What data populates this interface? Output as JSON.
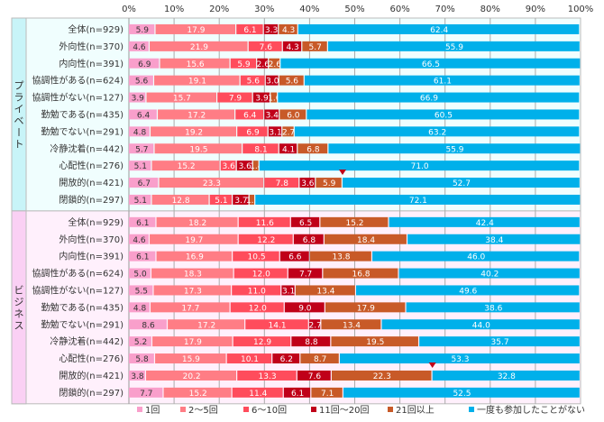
{
  "chart_data": {
    "type": "bar",
    "orientation": "horizontal",
    "stacked": "percent",
    "title": "",
    "xlabel": "",
    "ylabel": "",
    "xlim": [
      0,
      100
    ],
    "x_ticks": [
      "0%",
      "10%",
      "20%",
      "30%",
      "40%",
      "50%",
      "60%",
      "70%",
      "80%",
      "90%",
      "100%"
    ],
    "grid": true,
    "legend_position": "bottom",
    "series": [
      {
        "name": "1回",
        "color": "#F99FCB"
      },
      {
        "name": "2～5回",
        "color": "#FF7D85"
      },
      {
        "name": "6～10回",
        "color": "#FF4C5C"
      },
      {
        "name": "11回～20回",
        "color": "#C00019"
      },
      {
        "name": "21回以上",
        "color": "#C85A28"
      },
      {
        "name": "一度も参加したことがない",
        "color": "#00B0EA"
      }
    ],
    "groups": [
      {
        "name": "プライベート",
        "background": "#F0FEFE",
        "side_color": "#C8F4F8",
        "rows": [
          {
            "label": "全体(n=929)",
            "values": [
              5.9,
              17.9,
              6.1,
              3.3,
              4.3,
              62.4
            ]
          },
          {
            "label": "外向性(n=370)",
            "values": [
              4.6,
              21.9,
              7.6,
              4.3,
              5.7,
              55.9
            ]
          },
          {
            "label": "内向性(n=391)",
            "values": [
              6.9,
              15.6,
              5.9,
              2.6,
              2.6,
              66.5
            ]
          },
          {
            "label": "協調性がある(n=624)",
            "values": [
              5.6,
              19.1,
              5.6,
              3.0,
              5.6,
              61.1
            ]
          },
          {
            "label": "協調性がない(n=127)",
            "values": [
              3.9,
              15.7,
              7.9,
              3.9,
              1.6,
              66.9
            ]
          },
          {
            "label": "勤勉である(n=435)",
            "values": [
              6.4,
              17.2,
              6.4,
              3.4,
              6.0,
              60.5
            ]
          },
          {
            "label": "勤勉でない(n=291)",
            "values": [
              4.8,
              19.2,
              6.9,
              3.1,
              2.7,
              63.2
            ]
          },
          {
            "label": "冷静沈着(n=442)",
            "values": [
              5.7,
              19.5,
              8.1,
              4.1,
              6.8,
              55.9
            ]
          },
          {
            "label": "心配性(n=276)",
            "values": [
              5.1,
              15.2,
              3.6,
              3.6,
              1.4,
              71.0
            ]
          },
          {
            "label": "開放的(n=421)",
            "values": [
              6.7,
              23.3,
              7.8,
              3.6,
              5.9,
              52.7
            ],
            "marker": true
          },
          {
            "label": "閉鎖的(n=297)",
            "values": [
              5.1,
              12.8,
              5.1,
              3.7,
              1.3,
              72.1
            ]
          }
        ]
      },
      {
        "name": "ビジネス",
        "background": "#FFF0FC",
        "side_color": "#FAD0F4",
        "rows": [
          {
            "label": "全体(n=929)",
            "values": [
              6.1,
              18.2,
              11.6,
              6.5,
              15.2,
              42.4
            ]
          },
          {
            "label": "外向性(n=370)",
            "values": [
              4.6,
              19.7,
              12.2,
              6.8,
              18.4,
              38.4
            ]
          },
          {
            "label": "内向性(n=391)",
            "values": [
              6.1,
              16.9,
              10.5,
              6.6,
              13.8,
              46.0
            ]
          },
          {
            "label": "協調性がある(n=624)",
            "values": [
              5.0,
              18.3,
              12.0,
              7.7,
              16.8,
              40.2
            ]
          },
          {
            "label": "協調性がない(n=127)",
            "values": [
              5.5,
              17.3,
              11.0,
              3.1,
              13.4,
              49.6
            ]
          },
          {
            "label": "勤勉である(n=435)",
            "values": [
              4.8,
              17.7,
              12.0,
              9.0,
              17.9,
              38.6
            ]
          },
          {
            "label": "勤勉でない(n=291)",
            "values": [
              8.6,
              17.2,
              14.1,
              2.7,
              13.4,
              44.0
            ]
          },
          {
            "label": "冷静沈着(n=442)",
            "values": [
              5.2,
              17.9,
              12.9,
              8.8,
              19.5,
              35.7
            ]
          },
          {
            "label": "心配性(n=276)",
            "values": [
              5.8,
              15.9,
              10.1,
              6.2,
              8.7,
              53.3
            ]
          },
          {
            "label": "開放的(n=421)",
            "values": [
              3.8,
              20.2,
              13.3,
              7.6,
              22.3,
              32.8
            ],
            "marker": true
          },
          {
            "label": "閉鎖的(n=297)",
            "values": [
              7.7,
              15.2,
              11.4,
              6.1,
              7.1,
              52.5
            ]
          }
        ]
      }
    ],
    "annotations": [
      "▼ markers above 開放的 rows at boundary of 21回以上 and 一度も参加したことがない"
    ]
  },
  "marker_color": "#C00019"
}
